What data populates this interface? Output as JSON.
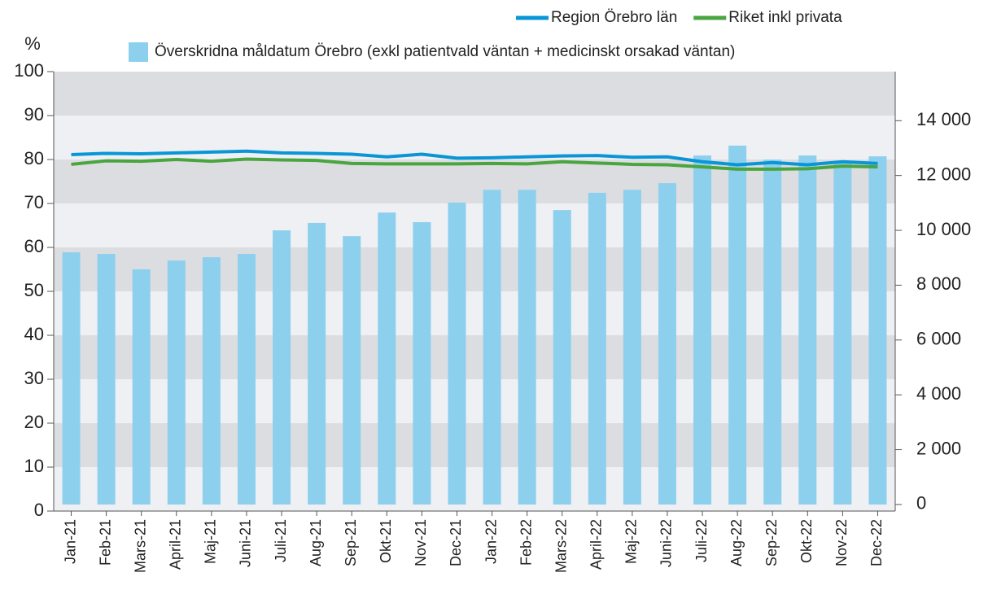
{
  "chart_data": {
    "type": "bar_line",
    "y_axis_label": "%",
    "categories": [
      "Jan-21",
      "Feb-21",
      "Mars-21",
      "April-21",
      "Maj-21",
      "Juni-21",
      "Juli-21",
      "Aug-21",
      "Sep-21",
      "Okt-21",
      "Nov-21",
      "Dec-21",
      "Jan-22",
      "Feb-22",
      "Mars-22",
      "April-22",
      "Maj-22",
      "Juni-22",
      "Juli-22",
      "Aug-22",
      "Sep-22",
      "Okt-22",
      "Nov-22",
      "Dec-22"
    ],
    "series": [
      {
        "name": "Överskridna måldatum Örebro (exkl patientvald väntan + medicinskt orsakad väntan)",
        "type": "bar",
        "axis": "y2",
        "color": "#8dd0ee",
        "values": [
          9200,
          9140,
          8580,
          8900,
          9020,
          9140,
          10000,
          10270,
          9790,
          10650,
          10300,
          11010,
          11480,
          11480,
          10740,
          11370,
          11480,
          11720,
          12730,
          13090,
          12580,
          12730,
          12460,
          12700
        ]
      },
      {
        "name": "Region Örebro län",
        "type": "line",
        "axis": "y",
        "color": "#0a96d6",
        "values": [
          81.1,
          81.4,
          81.3,
          81.5,
          81.7,
          81.9,
          81.5,
          81.4,
          81.2,
          80.6,
          81.2,
          80.3,
          80.4,
          80.6,
          80.8,
          80.9,
          80.5,
          80.6,
          79.5,
          78.8,
          79.3,
          78.8,
          79.5,
          79.1
        ]
      },
      {
        "name": "Riket inkl privata",
        "type": "line",
        "axis": "y",
        "color": "#4aa541",
        "values": [
          78.9,
          79.7,
          79.6,
          80.0,
          79.6,
          80.1,
          79.9,
          79.8,
          79.1,
          79.0,
          79.0,
          79.0,
          79.1,
          79.0,
          79.5,
          79.2,
          78.9,
          78.8,
          78.3,
          77.8,
          77.8,
          77.9,
          78.5,
          78.3
        ]
      }
    ],
    "ylim": [
      0,
      100
    ],
    "yticks": [
      0,
      10,
      20,
      30,
      40,
      50,
      60,
      70,
      80,
      90,
      100
    ],
    "y2lim": [
      -240,
      15790
    ],
    "y2ticks": [
      0,
      {
        "value": 2000,
        "label": "2 000"
      },
      {
        "value": 4000,
        "label": "4 000"
      },
      {
        "value": 6000,
        "label": "6 000"
      },
      {
        "value": 8000,
        "label": "8 000"
      },
      {
        "value": 10000,
        "label": "10 000"
      },
      {
        "value": 12000,
        "label": "12 000"
      },
      {
        "value": 14000,
        "label": "14 000"
      }
    ],
    "banded_grid": true,
    "band_colors": [
      "#eef0f3",
      "#dcdde0"
    ]
  }
}
